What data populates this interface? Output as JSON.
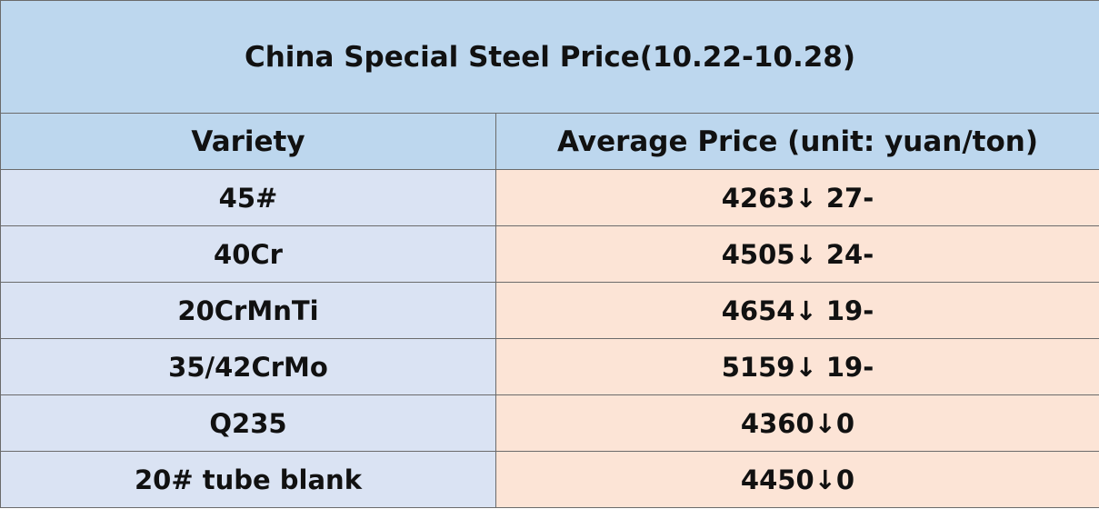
{
  "header": {
    "title": "China Special Steel Price(10.22-10.28)"
  },
  "table": {
    "columns": [
      "Variety",
      "Average Price (unit: yuan/ton)"
    ],
    "rows": [
      [
        "45#",
        "4263↓ 27-"
      ],
      [
        "40Cr",
        "4505↓ 24-"
      ],
      [
        "20CrMnTi",
        "4654↓ 19-"
      ],
      [
        "35/42CrMo",
        "5159↓ 19-"
      ],
      [
        "Q235",
        "4360↓0"
      ],
      [
        "20# tube blank",
        "4450↓0"
      ]
    ]
  }
}
